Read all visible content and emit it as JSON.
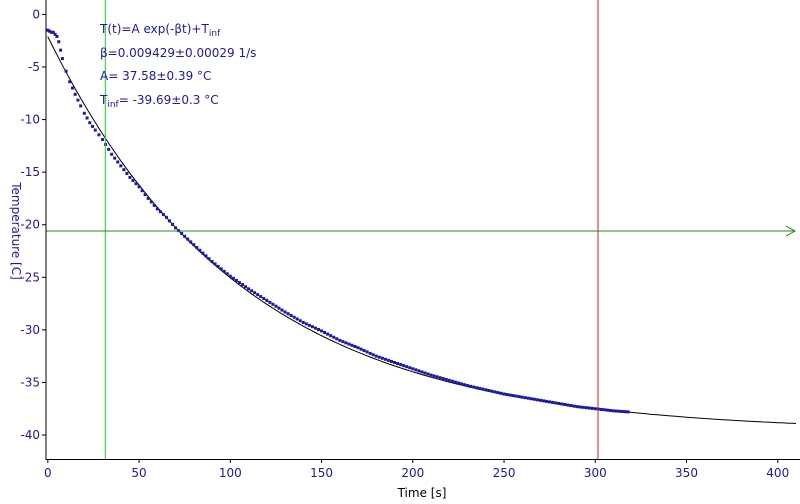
{
  "chart_data": {
    "type": "scatter",
    "xlabel": "Time [s]",
    "ylabel": "Temperature [C]",
    "xlim": [
      -1,
      410
    ],
    "ylim": [
      -41.9,
      0.8
    ],
    "xticks": [
      0,
      50,
      100,
      150,
      200,
      250,
      300,
      350,
      400
    ],
    "yticks": [
      0,
      -5,
      -10,
      -15,
      -20,
      -25,
      -30,
      -35,
      -40
    ],
    "xtick_labels": [
      "0",
      "50",
      "100",
      "150",
      "200",
      "250",
      "300",
      "350",
      "400"
    ],
    "ytick_labels": [
      "0",
      "-5",
      "-10",
      "-15",
      "-20",
      "-25",
      "-30",
      "-35",
      "-40"
    ],
    "grid": false,
    "annotations": {
      "formula_main": "T(t)=A exp(-βt)+T",
      "formula_sub": "inf",
      "beta": "β=0.009429±0.00029 1/s",
      "A": "A= 37.58±0.39 °C",
      "tinf_main": "T",
      "tinf_sub": "inf",
      "tinf_value": "= -39.69±0.3 °C"
    },
    "fit": {
      "name": "fit",
      "A": 37.58,
      "beta": 0.009429,
      "T_inf": -39.69,
      "x_range": [
        0,
        410
      ],
      "color": "#000000"
    },
    "measured": {
      "name": "measured",
      "color": "#1a1aa6",
      "points": [
        [
          0,
          -1.5
        ],
        [
          1,
          -1.6
        ],
        [
          2,
          -1.7
        ],
        [
          3,
          -1.7
        ],
        [
          4,
          -1.9
        ],
        [
          5,
          -2.1
        ],
        [
          6,
          -2.6
        ],
        [
          7,
          -3.4
        ],
        [
          8,
          -4.2
        ],
        [
          10,
          -5.4
        ],
        [
          12,
          -6.4
        ],
        [
          15,
          -7.6
        ],
        [
          18,
          -8.7
        ],
        [
          20,
          -9.4
        ],
        [
          23,
          -10.3
        ],
        [
          26,
          -11.0
        ],
        [
          30,
          -11.9
        ],
        [
          35,
          -13.3
        ],
        [
          40,
          -14.4
        ],
        [
          45,
          -15.5
        ],
        [
          50,
          -16.4
        ],
        [
          55,
          -17.5
        ],
        [
          60,
          -18.5
        ],
        [
          65,
          -19.3
        ],
        [
          70,
          -20.3
        ],
        [
          75,
          -21.1
        ],
        [
          80,
          -21.9
        ],
        [
          90,
          -23.5
        ],
        [
          100,
          -24.9
        ],
        [
          110,
          -26.1
        ],
        [
          120,
          -27.2
        ],
        [
          130,
          -28.3
        ],
        [
          140,
          -29.3
        ],
        [
          150,
          -30.1
        ],
        [
          160,
          -31.0
        ],
        [
          170,
          -31.7
        ],
        [
          180,
          -32.5
        ],
        [
          190,
          -33.1
        ],
        [
          200,
          -33.7
        ],
        [
          210,
          -34.3
        ],
        [
          220,
          -34.8
        ],
        [
          230,
          -35.3
        ],
        [
          240,
          -35.7
        ],
        [
          250,
          -36.1
        ],
        [
          260,
          -36.4
        ],
        [
          270,
          -36.7
        ],
        [
          280,
          -37.0
        ],
        [
          290,
          -37.3
        ],
        [
          300,
          -37.5
        ],
        [
          310,
          -37.7
        ],
        [
          318,
          -37.8
        ]
      ]
    },
    "cursors": {
      "green_vertical_x": 31.5,
      "red_vertical_x": 301.5,
      "horizontal_y": -20.6,
      "green_color": "#22cc22",
      "red_color": "#cc2222",
      "horizontal_color": "#1e8c1e"
    }
  }
}
